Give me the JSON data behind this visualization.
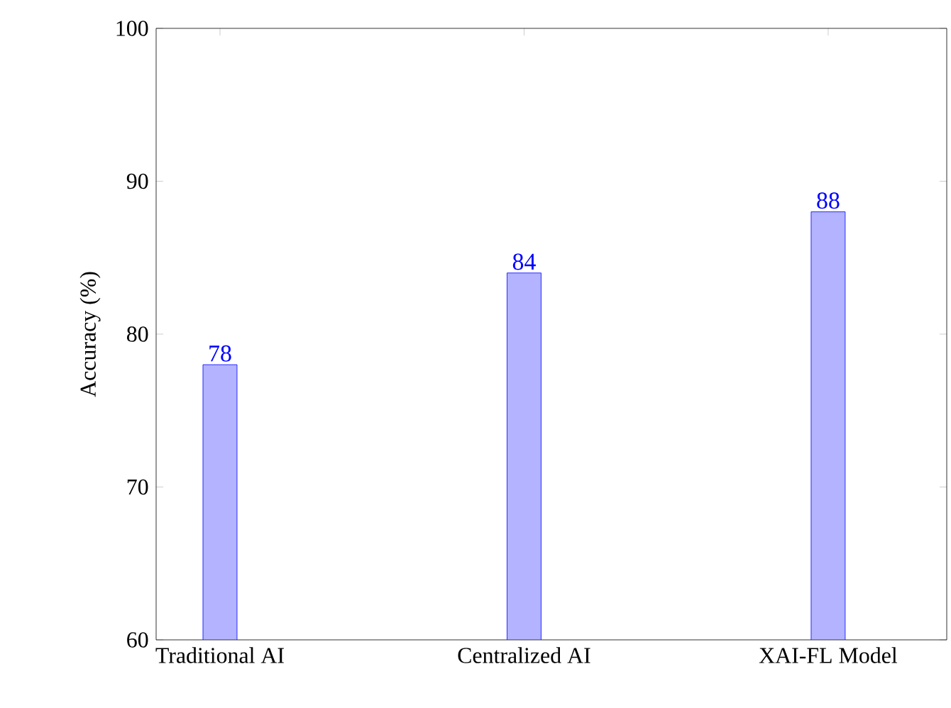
{
  "chart_data": {
    "type": "bar",
    "ylabel": "Accuracy (%)",
    "categories": [
      "Traditional AI",
      "Centralized AI",
      "XAI-FL Model"
    ],
    "values": [
      78,
      84,
      88
    ],
    "color": "#b3b3ff",
    "ylim": [
      60,
      100
    ],
    "yticks": [
      60,
      70,
      80,
      90,
      100
    ],
    "data_labels": true
  }
}
